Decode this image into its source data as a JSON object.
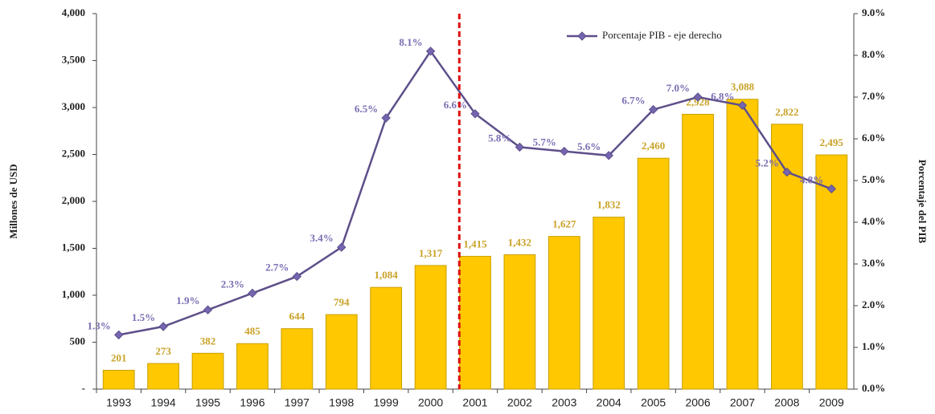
{
  "chart_data": {
    "type": "bar_line",
    "categories": [
      "1993",
      "1994",
      "1995",
      "1996",
      "1997",
      "1998",
      "1999",
      "2000",
      "2001",
      "2002",
      "2003",
      "2004",
      "2005",
      "2006",
      "2007",
      "2008",
      "2009"
    ],
    "series": [
      {
        "name": "Millones de USD",
        "type": "bar",
        "color": "#ffc800",
        "values": [
          201,
          273,
          382,
          485,
          644,
          794,
          1084,
          1317,
          1415,
          1432,
          1627,
          1832,
          2460,
          2928,
          3088,
          2822,
          2495
        ],
        "value_labels": [
          "201",
          "273",
          "382",
          "485",
          "644",
          "794",
          "1,084",
          "1,317",
          "1,415",
          "1,432",
          "1,627",
          "1,832",
          "2,460",
          "2,928",
          "3,088",
          "2,822",
          "2,495"
        ]
      },
      {
        "name": "Porcentaje PIB - eje derecho",
        "type": "line",
        "axis": "y2",
        "color": "#5e4f8a",
        "values": [
          1.3,
          1.5,
          1.9,
          2.3,
          2.7,
          3.4,
          6.5,
          8.1,
          6.6,
          5.8,
          5.7,
          5.6,
          6.7,
          7.0,
          6.8,
          5.2,
          4.8
        ],
        "value_labels": [
          "1.3%",
          "1.5%",
          "1.9%",
          "2.3%",
          "2.7%",
          "3.4%",
          "6.5%",
          "8.1%",
          "6.6%",
          "5.8%",
          "5.7%",
          "5.6%",
          "6.7%",
          "7.0%",
          "6.8%",
          "5.2%",
          "4.8%"
        ]
      }
    ],
    "ylabel": "Millones de USD",
    "y2label": "Porcentaje del PIB",
    "ylim": [
      0,
      4000
    ],
    "yticks": [
      {
        "value": 0,
        "label": "-"
      },
      500,
      {
        "value": 1000,
        "label": "1,000"
      },
      {
        "value": 1500,
        "label": "1,500"
      },
      {
        "value": 2000,
        "label": "2,000"
      },
      {
        "value": 2500,
        "label": "2,500"
      },
      {
        "value": 3000,
        "label": "3,000"
      },
      {
        "value": 3500,
        "label": "3,500"
      },
      {
        "value": 4000,
        "label": "4,000"
      }
    ],
    "y2lim": [
      0,
      9
    ],
    "y2ticks": [
      {
        "value": 0,
        "label": "0.0%"
      },
      {
        "value": 1,
        "label": "1.0%"
      },
      {
        "value": 2,
        "label": "2.0%"
      },
      {
        "value": 3,
        "label": "3.0%"
      },
      {
        "value": 4,
        "label": "4.0%"
      },
      {
        "value": 5,
        "label": "5.0%"
      },
      {
        "value": 6,
        "label": "6.0%"
      },
      {
        "value": 7,
        "label": "7.0%"
      },
      {
        "value": 8,
        "label": "8.0%"
      },
      {
        "value": 9,
        "label": "9.0%"
      }
    ],
    "legend": "top-right",
    "grid": false
  }
}
